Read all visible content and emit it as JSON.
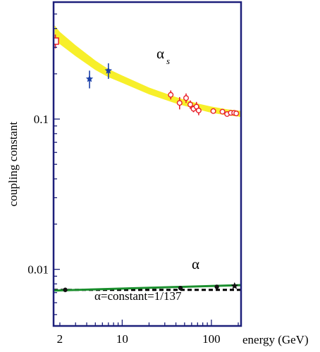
{
  "colors": {
    "frame": "#1c1f7a",
    "alpha_s_band": "#f7ef2a",
    "alpha_s_points": "#e8202a",
    "alpha_s_stars": "#1a3fa8",
    "alpha_line": "#1b8f2e",
    "alpha_points": "#111111",
    "constant_line": "#000000"
  },
  "chart_data": {
    "type": "scatter",
    "title": "",
    "xlabel": "energy (GeV)",
    "ylabel": "coupling constant",
    "x_scale": "log",
    "y_scale": "log",
    "xlim": [
      1.7,
      215
    ],
    "ylim": [
      0.0042,
      0.6
    ],
    "x_ticks": [
      2,
      10,
      100
    ],
    "x_tick_labels": [
      "2",
      "10",
      "100"
    ],
    "y_ticks": [
      0.01,
      0.1
    ],
    "y_tick_labels": [
      "0.01",
      "0.1"
    ],
    "grid": false,
    "annotations": {
      "alpha_s_symbol": "α",
      "alpha_s_subscript": "s",
      "alpha_label": "α",
      "constant_label": "α=constant=1/137"
    },
    "alpha_s_band": {
      "x": [
        1.75,
        2,
        3,
        5,
        7,
        10,
        20,
        40,
        70,
        100,
        150,
        200,
        215
      ],
      "upper": [
        0.42,
        0.38,
        0.31,
        0.245,
        0.215,
        0.195,
        0.162,
        0.14,
        0.127,
        0.121,
        0.116,
        0.114,
        0.113
      ],
      "lower": [
        0.34,
        0.315,
        0.262,
        0.212,
        0.19,
        0.174,
        0.146,
        0.127,
        0.116,
        0.11,
        0.106,
        0.104,
        0.103
      ]
    },
    "series": [
      {
        "marker": "open-square",
        "points": [
          {
            "x": 1.78,
            "y": 0.33,
            "err": 0.035
          }
        ]
      },
      {
        "marker": "star",
        "points": [
          {
            "x": 4.3,
            "y": 0.185,
            "err": 0.025
          },
          {
            "x": 7.0,
            "y": 0.21,
            "err": 0.025
          }
        ]
      },
      {
        "marker": "open-circle",
        "points": [
          {
            "x": 35,
            "y": 0.145,
            "err": 0.01
          },
          {
            "x": 44,
            "y": 0.128,
            "err": 0.012
          },
          {
            "x": 52,
            "y": 0.138,
            "err": 0.01
          },
          {
            "x": 58,
            "y": 0.125,
            "err": 0.008
          },
          {
            "x": 63,
            "y": 0.117,
            "err": 0.006
          },
          {
            "x": 68,
            "y": 0.121,
            "err": 0.009
          },
          {
            "x": 72,
            "y": 0.114,
            "err": 0.008
          },
          {
            "x": 105,
            "y": 0.113,
            "err": 0.004
          },
          {
            "x": 133,
            "y": 0.112,
            "err": 0.004
          },
          {
            "x": 150,
            "y": 0.108,
            "err": 0.004
          },
          {
            "x": 165,
            "y": 0.11,
            "err": 0.003
          },
          {
            "x": 180,
            "y": 0.11,
            "err": 0.003
          },
          {
            "x": 190,
            "y": 0.109,
            "err": 0.003
          }
        ]
      },
      {
        "marker": "filled-circle",
        "points": [
          {
            "x": 2.3,
            "y": 0.0073
          },
          {
            "x": 45,
            "y": 0.0075
          },
          {
            "x": 115,
            "y": 0.00765
          }
        ]
      },
      {
        "marker": "filled-star",
        "points": [
          {
            "x": 182,
            "y": 0.00775
          }
        ]
      }
    ],
    "alpha_line": {
      "x": [
        1.7,
        215
      ],
      "y": [
        0.00722,
        0.00785
      ]
    },
    "constant_line": {
      "y": 0.0073
    }
  }
}
